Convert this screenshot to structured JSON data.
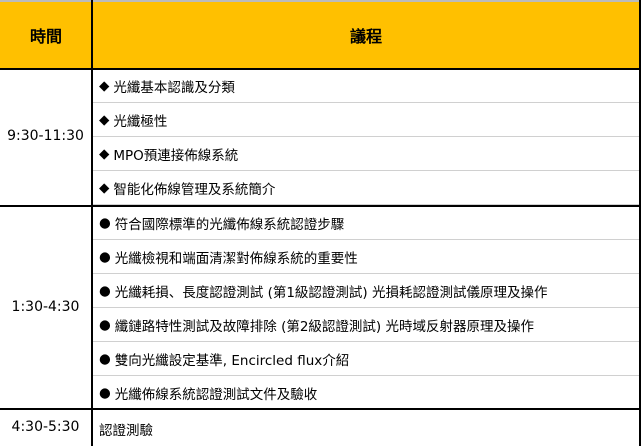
{
  "header": {
    "time": "時間",
    "agenda": "議程"
  },
  "sections": [
    {
      "time": "9:30-11:30",
      "bullet": "◆",
      "items": [
        "光纖基本認識及分類",
        "光纖極性",
        "MPO預連接佈線系統",
        "智能化佈線管理及系統簡介"
      ]
    },
    {
      "time": "1:30-4:30",
      "bullet": "●",
      "items": [
        "符合國際標準的光纖佈線系統認證步驟",
        "光纖檢視和端面清潔對佈線系統的重要性",
        "光纖耗損、長度認證測試 (第1級認證測試) 光損耗認證測試儀原理及操作",
        "纖鏈路特性測試及故障排除 (第2級認證測試) 光時域反射器原理及操作",
        "雙向光纖設定基準, Encircled flux介紹",
        "光纖佈線系統認證測試文件及驗收"
      ]
    },
    {
      "time": "4:30-5:30",
      "bullet": "",
      "items": [
        "認證測驗"
      ]
    }
  ],
  "colors": {
    "header": "#FFC000"
  }
}
